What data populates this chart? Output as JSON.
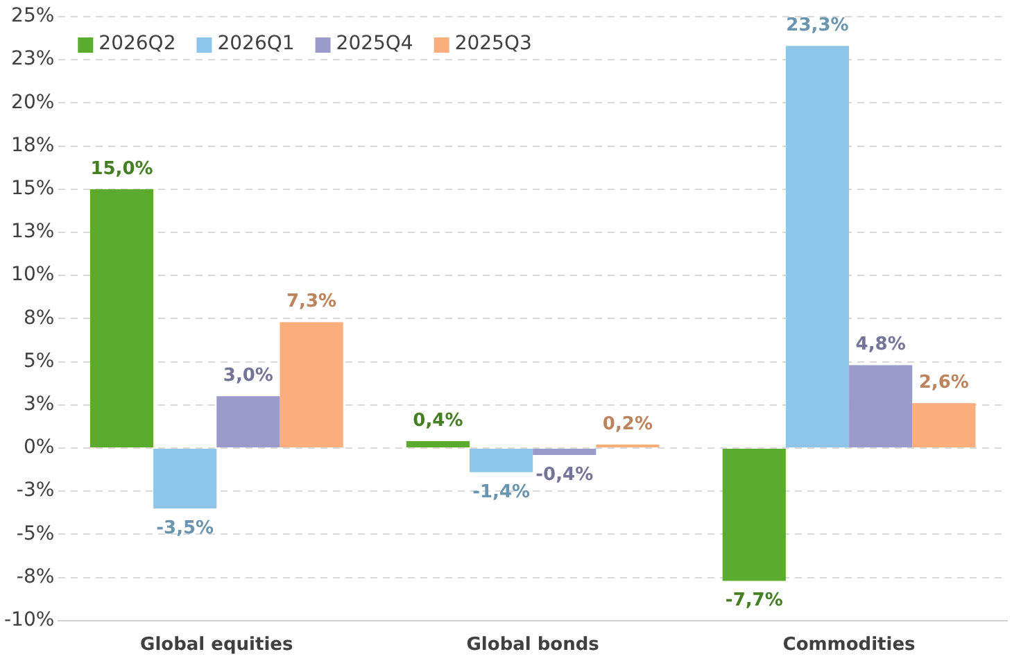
{
  "chart_data": {
    "type": "bar",
    "categories": [
      "Global equities",
      "Global bonds",
      "Commodities"
    ],
    "series": [
      {
        "name": "2026Q2",
        "color": "#5aab2e",
        "values": [
          15.0,
          0.4,
          -7.7
        ],
        "value_labels": [
          "15,0%",
          "0,4%",
          "-7,7%"
        ]
      },
      {
        "name": "2026Q1",
        "color": "#8dc6ea",
        "values": [
          -3.5,
          -1.4,
          23.3
        ],
        "value_labels": [
          "-3,5%",
          "-1,4%",
          "23,3%"
        ]
      },
      {
        "name": "2025Q4",
        "color": "#9a9acb",
        "values": [
          3.0,
          -0.4,
          4.8
        ],
        "value_labels": [
          "3,0%",
          "-0,4%",
          "4,8%"
        ]
      },
      {
        "name": "2025Q3",
        "color": "#fbae7c",
        "values": [
          7.3,
          0.2,
          2.6
        ],
        "value_labels": [
          "7,3%",
          "0,2%",
          "2,6%"
        ]
      }
    ],
    "ylim": [
      -10,
      25
    ],
    "yticks": [
      {
        "value": -10,
        "label": "-10%"
      },
      {
        "value": -7.5,
        "label": "-8%"
      },
      {
        "value": -5,
        "label": "-5%"
      },
      {
        "value": -2.5,
        "label": "-3%"
      },
      {
        "value": 0,
        "label": "0%"
      },
      {
        "value": 2.5,
        "label": "3%"
      },
      {
        "value": 5,
        "label": "5%"
      },
      {
        "value": 7.5,
        "label": "8%"
      },
      {
        "value": 10,
        "label": "10%"
      },
      {
        "value": 12.5,
        "label": "13%"
      },
      {
        "value": 15,
        "label": "15%"
      },
      {
        "value": 17.5,
        "label": "18%"
      },
      {
        "value": 20,
        "label": "20%"
      },
      {
        "value": 22.5,
        "label": "23%"
      },
      {
        "value": 25,
        "label": "25%"
      }
    ],
    "grid": "y",
    "legend": "top left"
  }
}
